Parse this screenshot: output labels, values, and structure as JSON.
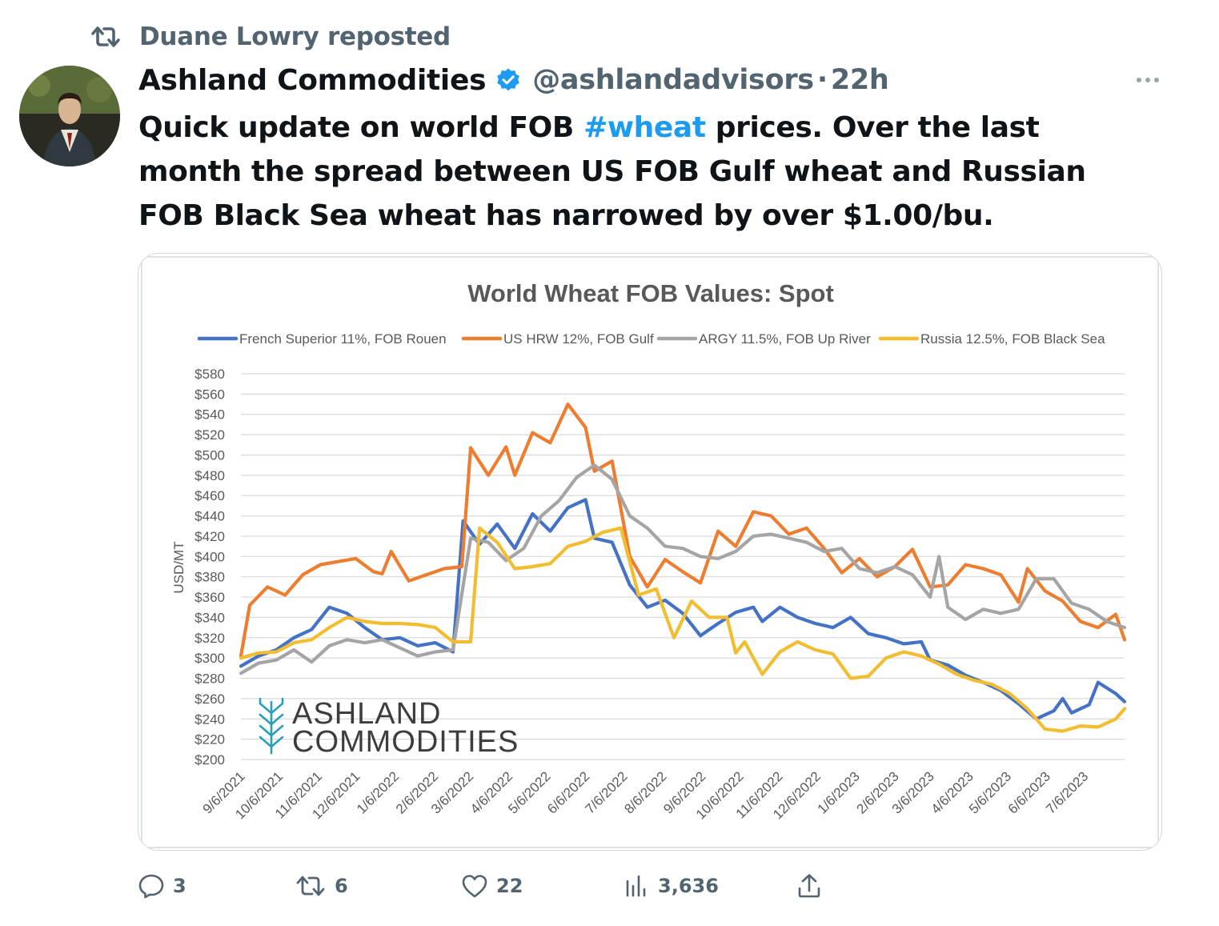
{
  "repost": {
    "label": "Duane Lowry reposted",
    "icon": "repost-icon"
  },
  "tweet": {
    "author_name": "Ashland Commodities",
    "handle": "@ashlandadvisors",
    "separator": "·",
    "time": "22h",
    "text_before": "Quick update on world FOB ",
    "hashtag": "#wheat",
    "text_after": " prices. Over the last month the spread between US FOB Gulf wheat and Russian FOB Black Sea wheat has narrowed by over $1.00/bu.",
    "colors": {
      "hashtag": "#1d9bf0",
      "verified": "#1d9bf0",
      "muted": "#536471"
    }
  },
  "actions": {
    "replies": "3",
    "reposts": "6",
    "likes": "22",
    "views": "3,636"
  },
  "watermark": {
    "line1": "ASHLAND",
    "line2": "COMMODITIES"
  },
  "chart_data": {
    "type": "line",
    "title": "World Wheat FOB Values: Spot",
    "ylabel": "USD/MT",
    "xlabel": "",
    "ylim": [
      200,
      580
    ],
    "ytick_step": 20,
    "ytick_labels": [
      "$580",
      "$560",
      "$540",
      "$520",
      "$500",
      "$480",
      "$460",
      "$440",
      "$420",
      "$400",
      "$380",
      "$360",
      "$340",
      "$320",
      "$300",
      "$280",
      "$260",
      "$240",
      "$220",
      "$200"
    ],
    "x_tick_labels": [
      "9/6/2021",
      "10/6/2021",
      "11/6/2021",
      "12/6/2021",
      "1/6/2022",
      "2/6/2022",
      "3/6/2022",
      "4/6/2022",
      "5/6/2022",
      "6/6/2022",
      "7/6/2022",
      "8/6/2022",
      "9/6/2022",
      "10/6/2022",
      "11/6/2022",
      "12/6/2022",
      "1/6/2023",
      "2/6/2023",
      "3/6/2023",
      "4/6/2023",
      "5/6/2023",
      "6/6/2023",
      "7/6/2023"
    ],
    "x_start": "9/6/2021",
    "x_end": "8/7/2023",
    "grid": true,
    "legend_position": "top",
    "series": [
      {
        "name": "French Superior 11%, FOB Rouen",
        "color": "#4472c4",
        "points": [
          [
            "9/6/2021",
            292
          ],
          [
            "9/20/2021",
            302
          ],
          [
            "10/4/2021",
            308
          ],
          [
            "10/18/2021",
            320
          ],
          [
            "11/1/2021",
            328
          ],
          [
            "11/15/2021",
            350
          ],
          [
            "11/29/2021",
            344
          ],
          [
            "12/13/2021",
            330
          ],
          [
            "12/27/2021",
            318
          ],
          [
            "1/10/2022",
            320
          ],
          [
            "1/24/2022",
            312
          ],
          [
            "2/7/2022",
            315
          ],
          [
            "2/21/2022",
            306
          ],
          [
            "3/1/2022",
            435
          ],
          [
            "3/14/2022",
            412
          ],
          [
            "3/28/2022",
            432
          ],
          [
            "4/11/2022",
            408
          ],
          [
            "4/25/2022",
            442
          ],
          [
            "5/9/2022",
            425
          ],
          [
            "5/23/2022",
            448
          ],
          [
            "6/6/2022",
            456
          ],
          [
            "6/13/2022",
            418
          ],
          [
            "6/27/2022",
            414
          ],
          [
            "7/11/2022",
            372
          ],
          [
            "7/25/2022",
            350
          ],
          [
            "8/8/2022",
            357
          ],
          [
            "8/22/2022",
            344
          ],
          [
            "9/5/2022",
            322
          ],
          [
            "9/19/2022",
            334
          ],
          [
            "10/3/2022",
            345
          ],
          [
            "10/17/2022",
            350
          ],
          [
            "10/24/2022",
            336
          ],
          [
            "11/7/2022",
            350
          ],
          [
            "11/21/2022",
            340
          ],
          [
            "12/5/2022",
            334
          ],
          [
            "12/19/2022",
            330
          ],
          [
            "1/2/2023",
            340
          ],
          [
            "1/16/2023",
            324
          ],
          [
            "1/30/2023",
            320
          ],
          [
            "2/13/2023",
            314
          ],
          [
            "2/27/2023",
            316
          ],
          [
            "3/6/2023",
            298
          ],
          [
            "3/20/2023",
            293
          ],
          [
            "4/3/2023",
            283
          ],
          [
            "4/17/2023",
            276
          ],
          [
            "5/1/2023",
            268
          ],
          [
            "5/15/2023",
            255
          ],
          [
            "5/29/2023",
            240
          ],
          [
            "6/12/2023",
            248
          ],
          [
            "6/19/2023",
            260
          ],
          [
            "6/26/2023",
            246
          ],
          [
            "7/10/2023",
            254
          ],
          [
            "7/17/2023",
            276
          ],
          [
            "7/31/2023",
            265
          ],
          [
            "8/7/2023",
            257
          ]
        ]
      },
      {
        "name": "US HRW 12%, FOB Gulf",
        "color": "#ed7d31",
        "points": [
          [
            "9/6/2021",
            302
          ],
          [
            "9/13/2021",
            352
          ],
          [
            "9/27/2021",
            370
          ],
          [
            "10/11/2021",
            362
          ],
          [
            "10/25/2021",
            382
          ],
          [
            "11/8/2021",
            392
          ],
          [
            "11/22/2021",
            395
          ],
          [
            "12/6/2021",
            398
          ],
          [
            "12/20/2021",
            385
          ],
          [
            "12/27/2021",
            383
          ],
          [
            "1/3/2022",
            405
          ],
          [
            "1/17/2022",
            376
          ],
          [
            "1/31/2022",
            382
          ],
          [
            "2/14/2022",
            388
          ],
          [
            "2/28/2022",
            390
          ],
          [
            "3/7/2022",
            507
          ],
          [
            "3/21/2022",
            480
          ],
          [
            "4/4/2022",
            508
          ],
          [
            "4/11/2022",
            480
          ],
          [
            "4/25/2022",
            522
          ],
          [
            "5/9/2022",
            512
          ],
          [
            "5/23/2022",
            550
          ],
          [
            "6/6/2022",
            527
          ],
          [
            "6/13/2022",
            484
          ],
          [
            "6/27/2022",
            494
          ],
          [
            "7/11/2022",
            400
          ],
          [
            "7/25/2022",
            370
          ],
          [
            "8/8/2022",
            397
          ],
          [
            "8/22/2022",
            385
          ],
          [
            "9/5/2022",
            374
          ],
          [
            "9/19/2022",
            425
          ],
          [
            "10/3/2022",
            410
          ],
          [
            "10/17/2022",
            444
          ],
          [
            "10/31/2022",
            440
          ],
          [
            "11/14/2022",
            422
          ],
          [
            "11/28/2022",
            428
          ],
          [
            "12/12/2022",
            408
          ],
          [
            "12/26/2022",
            384
          ],
          [
            "1/9/2023",
            398
          ],
          [
            "1/23/2023",
            380
          ],
          [
            "2/6/2023",
            390
          ],
          [
            "2/20/2023",
            407
          ],
          [
            "3/6/2023",
            370
          ],
          [
            "3/20/2023",
            372
          ],
          [
            "4/3/2023",
            392
          ],
          [
            "4/17/2023",
            388
          ],
          [
            "5/1/2023",
            382
          ],
          [
            "5/15/2023",
            355
          ],
          [
            "5/22/2023",
            388
          ],
          [
            "6/5/2023",
            366
          ],
          [
            "6/19/2023",
            356
          ],
          [
            "7/3/2023",
            336
          ],
          [
            "7/17/2023",
            330
          ],
          [
            "7/31/2023",
            343
          ],
          [
            "8/7/2023",
            318
          ]
        ]
      },
      {
        "name": "ARGY 11.5%, FOB Up River",
        "color": "#a5a5a5",
        "points": [
          [
            "9/6/2021",
            285
          ],
          [
            "9/20/2021",
            295
          ],
          [
            "10/4/2021",
            298
          ],
          [
            "10/18/2021",
            308
          ],
          [
            "11/1/2021",
            296
          ],
          [
            "11/15/2021",
            312
          ],
          [
            "11/29/2021",
            318
          ],
          [
            "12/13/2021",
            315
          ],
          [
            "12/27/2021",
            318
          ],
          [
            "1/10/2022",
            310
          ],
          [
            "1/24/2022",
            302
          ],
          [
            "2/7/2022",
            306
          ],
          [
            "2/21/2022",
            308
          ],
          [
            "3/7/2022",
            418
          ],
          [
            "3/21/2022",
            414
          ],
          [
            "4/4/2022",
            396
          ],
          [
            "4/18/2022",
            408
          ],
          [
            "5/2/2022",
            440
          ],
          [
            "5/16/2022",
            455
          ],
          [
            "5/30/2022",
            478
          ],
          [
            "6/13/2022",
            490
          ],
          [
            "6/27/2022",
            476
          ],
          [
            "7/11/2022",
            440
          ],
          [
            "7/25/2022",
            428
          ],
          [
            "8/8/2022",
            410
          ],
          [
            "8/22/2022",
            408
          ],
          [
            "9/5/2022",
            400
          ],
          [
            "9/19/2022",
            398
          ],
          [
            "10/3/2022",
            405
          ],
          [
            "10/17/2022",
            420
          ],
          [
            "10/31/2022",
            422
          ],
          [
            "11/14/2022",
            418
          ],
          [
            "11/28/2022",
            414
          ],
          [
            "12/12/2022",
            405
          ],
          [
            "12/26/2022",
            408
          ],
          [
            "1/9/2023",
            388
          ],
          [
            "1/23/2023",
            384
          ],
          [
            "2/6/2023",
            390
          ],
          [
            "2/20/2023",
            382
          ],
          [
            "3/6/2023",
            360
          ],
          [
            "3/13/2023",
            400
          ],
          [
            "3/20/2023",
            350
          ],
          [
            "4/3/2023",
            338
          ],
          [
            "4/17/2023",
            348
          ],
          [
            "5/1/2023",
            344
          ],
          [
            "5/15/2023",
            348
          ],
          [
            "5/29/2023",
            378
          ],
          [
            "6/12/2023",
            378
          ],
          [
            "6/26/2023",
            354
          ],
          [
            "7/10/2023",
            348
          ],
          [
            "7/24/2023",
            336
          ],
          [
            "8/7/2023",
            330
          ]
        ]
      },
      {
        "name": "Russia 12.5%, FOB Black Sea",
        "color": "#f2bd30",
        "points": [
          [
            "9/6/2021",
            300
          ],
          [
            "9/20/2021",
            305
          ],
          [
            "10/4/2021",
            306
          ],
          [
            "10/18/2021",
            315
          ],
          [
            "11/1/2021",
            318
          ],
          [
            "11/15/2021",
            330
          ],
          [
            "11/29/2021",
            340
          ],
          [
            "12/13/2021",
            336
          ],
          [
            "12/27/2021",
            334
          ],
          [
            "1/10/2022",
            334
          ],
          [
            "1/24/2022",
            333
          ],
          [
            "2/7/2022",
            330
          ],
          [
            "2/21/2022",
            316
          ],
          [
            "3/7/2022",
            316
          ],
          [
            "3/14/2022",
            428
          ],
          [
            "3/28/2022",
            414
          ],
          [
            "4/11/2022",
            388
          ],
          [
            "4/25/2022",
            390
          ],
          [
            "5/9/2022",
            393
          ],
          [
            "5/23/2022",
            410
          ],
          [
            "6/6/2022",
            415
          ],
          [
            "6/20/2022",
            424
          ],
          [
            "7/4/2022",
            428
          ],
          [
            "7/18/2022",
            362
          ],
          [
            "8/1/2022",
            368
          ],
          [
            "8/15/2022",
            320
          ],
          [
            "8/29/2022",
            356
          ],
          [
            "9/12/2022",
            340
          ],
          [
            "9/26/2022",
            340
          ],
          [
            "10/3/2022",
            305
          ],
          [
            "10/10/2022",
            316
          ],
          [
            "10/24/2022",
            284
          ],
          [
            "11/7/2022",
            306
          ],
          [
            "11/21/2022",
            316
          ],
          [
            "12/5/2022",
            308
          ],
          [
            "12/19/2022",
            304
          ],
          [
            "1/2/2023",
            280
          ],
          [
            "1/16/2023",
            282
          ],
          [
            "1/30/2023",
            300
          ],
          [
            "2/13/2023",
            306
          ],
          [
            "2/27/2023",
            302
          ],
          [
            "3/13/2023",
            294
          ],
          [
            "3/27/2023",
            284
          ],
          [
            "4/10/2023",
            278
          ],
          [
            "4/24/2023",
            274
          ],
          [
            "5/8/2023",
            265
          ],
          [
            "5/22/2023",
            250
          ],
          [
            "6/5/2023",
            230
          ],
          [
            "6/19/2023",
            228
          ],
          [
            "7/3/2023",
            233
          ],
          [
            "7/17/2023",
            232
          ],
          [
            "7/31/2023",
            240
          ],
          [
            "8/7/2023",
            250
          ]
        ]
      }
    ]
  }
}
